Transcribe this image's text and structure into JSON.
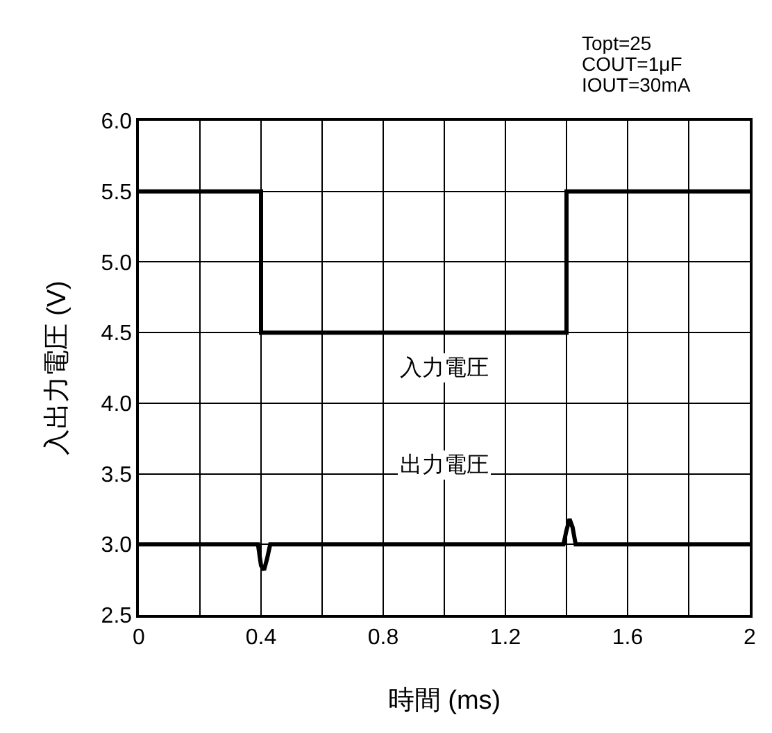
{
  "chart_data": {
    "type": "line",
    "xlabel": "時間 (ms)",
    "ylabel": "入出力電圧 (V)",
    "xlim": [
      0,
      2
    ],
    "xticks": [
      0,
      0.4,
      0.8,
      1.2,
      1.6,
      2
    ],
    "ylim": [
      2.5,
      6
    ],
    "yticks": [
      {
        "value": 2.5,
        "label": "2.5"
      },
      {
        "value": 3,
        "label": "3.0"
      },
      {
        "value": 3.5,
        "label": "3.5"
      },
      {
        "value": 4,
        "label": "4.0"
      },
      {
        "value": 4.5,
        "label": "4.5"
      },
      {
        "value": 5,
        "label": "5.0"
      },
      {
        "value": 5.5,
        "label": "5.5"
      },
      {
        "value": 6,
        "label": "6.0"
      }
    ],
    "grid": true,
    "marker": "none",
    "line_style": "solid",
    "series": [
      {
        "color": "#000000",
        "x": [
          0,
          0.4,
          0.4,
          1.4,
          1.4,
          2
        ],
        "values": [
          5.5,
          5.5,
          4.5,
          4.5,
          5.5,
          5.5
        ]
      },
      {
        "color": "#000000",
        "x": [
          0,
          0.39,
          0.4,
          0.41,
          0.42,
          0.43,
          1.39,
          1.4,
          1.41,
          1.42,
          1.43,
          2
        ],
        "values": [
          3.0,
          3.0,
          2.85,
          2.82,
          2.9,
          3.0,
          3.0,
          3.1,
          3.18,
          3.12,
          3.0,
          3.0
        ]
      }
    ],
    "annotations": [
      "入力電圧",
      "出力電圧",
      "Topt=25",
      "COUT=1μF",
      "IOUT=30mA"
    ]
  }
}
